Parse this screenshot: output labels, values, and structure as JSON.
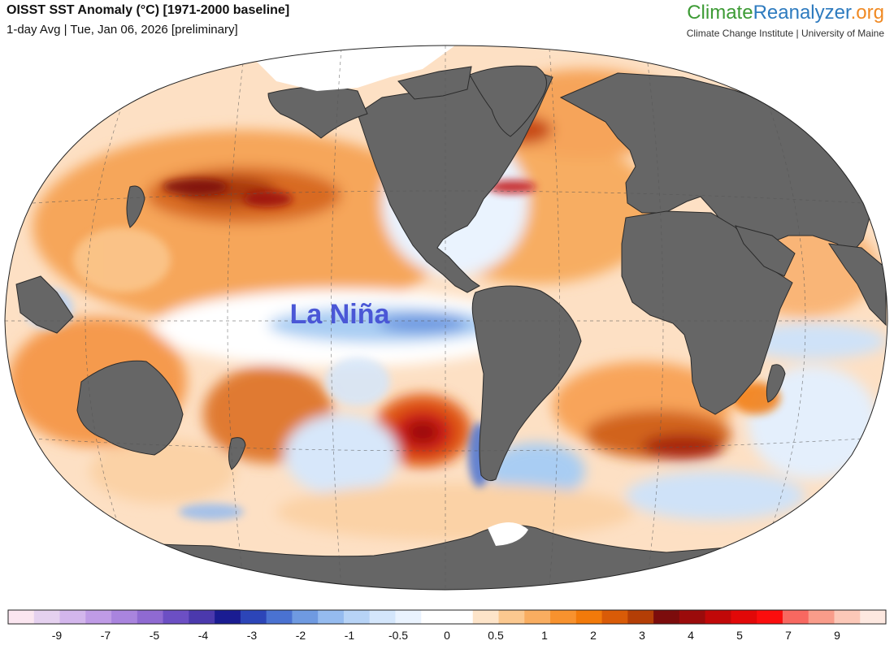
{
  "header": {
    "title": "OISST SST Anomaly (°C) [1971-2000 baseline]",
    "subtitle": "1-day Avg | Tue, Jan 06, 2026 [preliminary]"
  },
  "brand": {
    "part1": "Climate",
    "part2": "Reanalyzer",
    "part3": ".org",
    "affiliation": "Climate Change Institute | University of Maine"
  },
  "map": {
    "projection": "Winkel Tripel (world)",
    "annotation": "La Niña",
    "colors": {
      "land": "#666666",
      "sea_ice": "#ffffff",
      "annotation": "#4a57d6"
    }
  },
  "colorbar": {
    "tick_labels": [
      "-9",
      "-7",
      "-5",
      "-4",
      "-3",
      "-2",
      "-1",
      "-0.5",
      "0",
      "0.5",
      "1",
      "2",
      "3",
      "4",
      "5",
      "7",
      "9"
    ],
    "colors": [
      "#fbe6f0",
      "#e5d1ef",
      "#d3b6ec",
      "#bf9be6",
      "#a984de",
      "#8f6ad2",
      "#6c4fc4",
      "#4b39ad",
      "#1a1c92",
      "#2c45b8",
      "#4a72d1",
      "#6f9ae1",
      "#95bbef",
      "#b7d3f6",
      "#d4e6fb",
      "#eaf3fe",
      "#ffffff",
      "#ffffff",
      "#fde4c9",
      "#fbc88f",
      "#f9ad60",
      "#f8922e",
      "#f27a0a",
      "#d95b07",
      "#b43e06",
      "#7c0c0c",
      "#9b0b0b",
      "#c10808",
      "#e20808",
      "#fb0d0d",
      "#f86860",
      "#f99c8a",
      "#fcc8b8",
      "#fde8e0"
    ]
  }
}
